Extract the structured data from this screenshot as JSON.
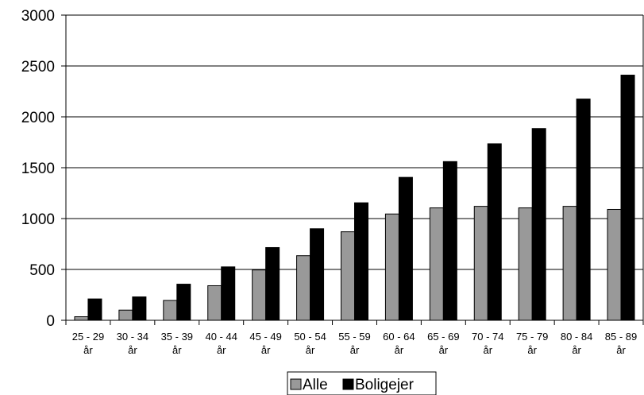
{
  "chart_data": {
    "type": "bar",
    "categories": [
      [
        "25 - 29",
        "år"
      ],
      [
        "30 - 34",
        "år"
      ],
      [
        "35 - 39",
        "år"
      ],
      [
        "40 - 44",
        "år"
      ],
      [
        "45 - 49",
        "år"
      ],
      [
        "50 - 54",
        "år"
      ],
      [
        "55 - 59",
        "år"
      ],
      [
        "60 - 64",
        "år"
      ],
      [
        "65 - 69",
        "år"
      ],
      [
        "70 - 74",
        "år"
      ],
      [
        "75 - 79",
        "år"
      ],
      [
        "80 - 84",
        "år"
      ],
      [
        "85 - 89",
        "år"
      ]
    ],
    "series": [
      {
        "name": "Alle",
        "color": "#999999",
        "values": [
          35,
          100,
          195,
          340,
          495,
          635,
          870,
          1045,
          1105,
          1120,
          1105,
          1120,
          1090
        ]
      },
      {
        "name": "Boligejer",
        "color": "#000000",
        "values": [
          210,
          230,
          355,
          525,
          715,
          900,
          1155,
          1405,
          1560,
          1735,
          1885,
          2175,
          2410
        ]
      }
    ],
    "yticks": [
      "0",
      "500",
      "1000",
      "1500",
      "2000",
      "2500",
      "3000"
    ],
    "ylim": [
      0,
      3000
    ],
    "grid": true,
    "legend": "bottom"
  }
}
